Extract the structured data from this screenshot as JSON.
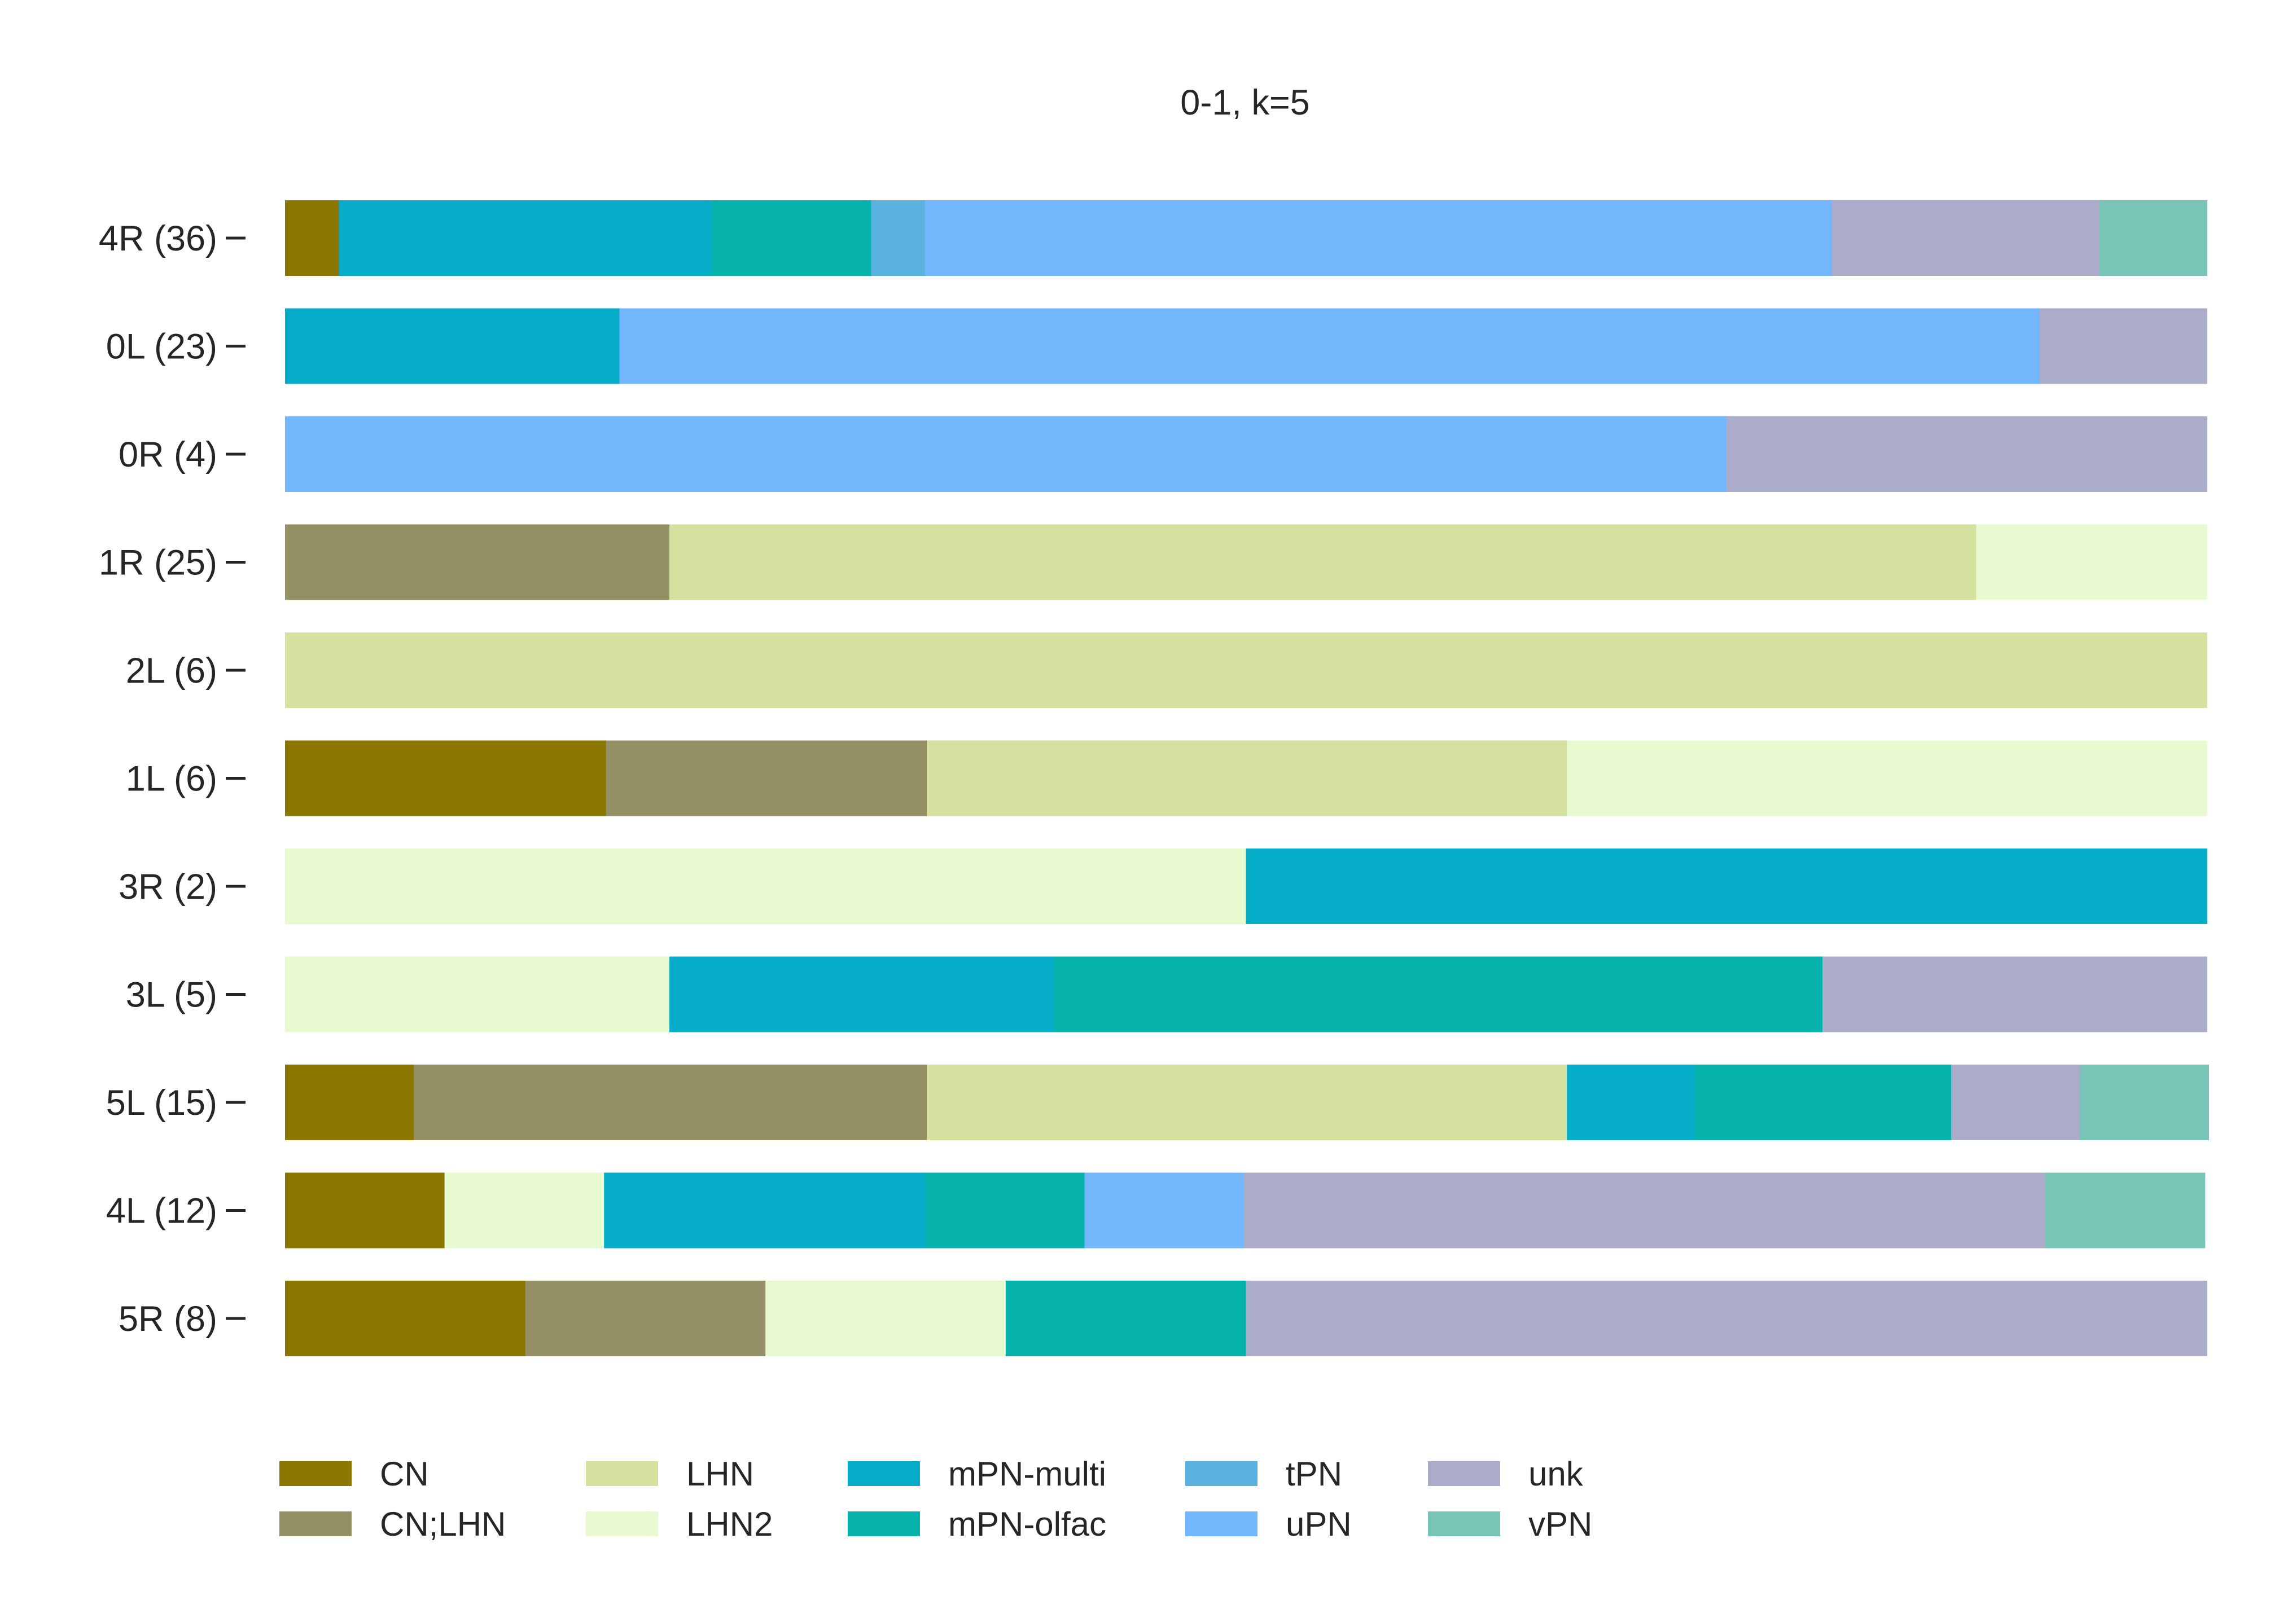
{
  "chart_data": {
    "type": "bar",
    "orientation": "horizontal",
    "stacked": true,
    "normalized": true,
    "title": "0-1, k=5",
    "xlabel": "",
    "ylabel": "",
    "xlim": [
      0,
      1
    ],
    "grid": false,
    "legend_position": "bottom",
    "categories": [
      "4R (36)",
      "0L (23)",
      "0R (4)",
      "1R (25)",
      "2L (6)",
      "1L (6)",
      "3R (2)",
      "3L (5)",
      "5L (15)",
      "4L (12)",
      "5R (8)"
    ],
    "series": [
      {
        "name": "CN",
        "color": "#8b7600",
        "values": [
          0.028,
          0,
          0,
          0,
          0,
          0.167,
          0,
          0,
          0.067,
          0.083,
          0.125
        ]
      },
      {
        "name": "CN;LHN",
        "color": "#948f65",
        "values": [
          0,
          0,
          0,
          0.2,
          0,
          0.167,
          0,
          0,
          0.267,
          0,
          0.125
        ]
      },
      {
        "name": "LHN",
        "color": "#d5e29f",
        "values": [
          0,
          0,
          0,
          0.68,
          1.0,
          0.333,
          0,
          0,
          0.333,
          0,
          0
        ]
      },
      {
        "name": "LHN2",
        "color": "#e8fbd0",
        "values": [
          0,
          0,
          0,
          0.12,
          0,
          0.333,
          0.5,
          0.2,
          0,
          0.083,
          0.125
        ]
      },
      {
        "name": "mPN-multi",
        "color": "#06acc8",
        "values": [
          0.194,
          0.174,
          0,
          0,
          0,
          0,
          0.5,
          0.2,
          0.067,
          0.167,
          0
        ]
      },
      {
        "name": "mPN-olfac",
        "color": "#07b2ac",
        "values": [
          0.083,
          0,
          0,
          0,
          0,
          0,
          0,
          0.4,
          0.133,
          0.083,
          0.125
        ]
      },
      {
        "name": "tPN",
        "color": "#5ab2df",
        "values": [
          0.028,
          0,
          0,
          0,
          0,
          0,
          0,
          0,
          0,
          0,
          0
        ]
      },
      {
        "name": "uPN",
        "color": "#72b7fc",
        "values": [
          0.472,
          0.739,
          0.75,
          0,
          0,
          0,
          0,
          0,
          0,
          0.083,
          0
        ]
      },
      {
        "name": "unk",
        "color": "#ababca",
        "values": [
          0.139,
          0.087,
          0.25,
          0,
          0,
          0,
          0,
          0.2,
          0.067,
          0.417,
          0.5
        ]
      },
      {
        "name": "vPN",
        "color": "#78c5b7",
        "values": [
          0.056,
          0,
          0,
          0,
          0,
          0,
          0,
          0,
          0.067,
          0.083,
          0
        ]
      }
    ]
  }
}
